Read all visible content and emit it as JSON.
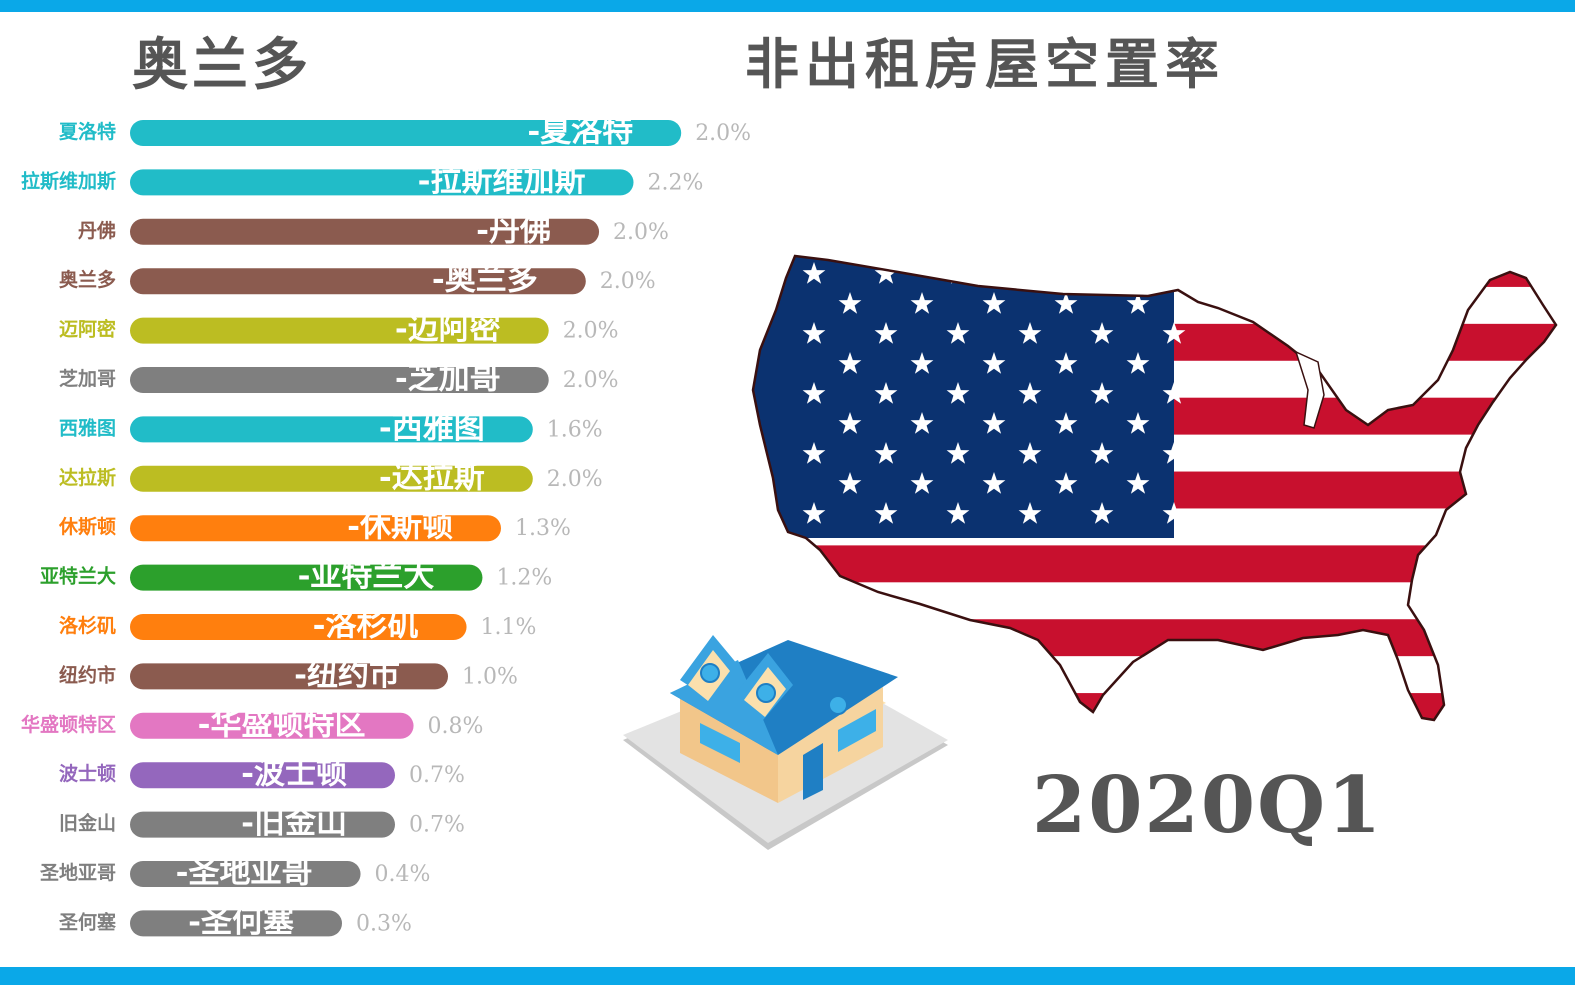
{
  "header": {
    "leader": "奥兰多",
    "title": "非出租房屋空置率"
  },
  "period": "2020Q1",
  "illustrations": {
    "map": "us-flag-map-icon",
    "house": "house-icon"
  },
  "colors": {
    "frame": "#0aa8e8",
    "value_label": "#b8b8b8"
  },
  "chart_data": {
    "type": "bar",
    "orientation": "horizontal",
    "title": "非出租房屋空置率",
    "categories": [
      "夏洛特",
      "拉斯维加斯",
      "丹佛",
      "奥兰多",
      "迈阿密",
      "芝加哥",
      "西雅图",
      "达拉斯",
      "休斯顿",
      "亚特兰大",
      "洛杉矶",
      "纽约市",
      "华盛顿特区",
      "波士顿",
      "旧金山",
      "圣地亚哥",
      "圣何塞"
    ],
    "bar_labels": [
      "-夏洛特",
      "-拉斯维加斯",
      "-丹佛",
      "-奥兰多",
      "-迈阿密",
      "-芝加哥",
      "-西雅图",
      "-达拉斯",
      "-休斯顿",
      "-亚特兰大",
      "-洛杉矶",
      "-纽约市",
      "-华盛顿特区",
      "-波士顿",
      "-旧金山",
      "-圣地亚哥",
      "-圣何塞"
    ],
    "value_labels": [
      "2.0%",
      "2.2%",
      "2.0%",
      "2.0%",
      "2.0%",
      "2.0%",
      "1.6%",
      "2.0%",
      "1.3%",
      "1.2%",
      "1.1%",
      "1.0%",
      "0.8%",
      "0.7%",
      "0.7%",
      "0.4%",
      "0.3%"
    ],
    "values": [
      2.0,
      2.2,
      2.0,
      2.0,
      2.0,
      2.0,
      1.6,
      2.0,
      1.3,
      1.2,
      1.1,
      1.0,
      0.8,
      0.7,
      0.7,
      0.4,
      0.3
    ],
    "bar_extent_index": [
      2.08,
      1.9,
      1.77,
      1.72,
      1.58,
      1.58,
      1.52,
      1.52,
      1.4,
      1.33,
      1.27,
      1.2,
      1.07,
      1.0,
      1.0,
      0.87,
      0.8
    ],
    "colors": [
      "#21bcc8",
      "#21bcc8",
      "#8b5b4f",
      "#8b5b4f",
      "#bcbd22",
      "#7f7f7f",
      "#21bcc8",
      "#bcbd22",
      "#ff7f0e",
      "#2ca02c",
      "#ff7f0e",
      "#8b5b4f",
      "#e377c2",
      "#9467bd",
      "#7f7f7f",
      "#7f7f7f",
      "#7f7f7f"
    ],
    "grid": false,
    "legend": "none"
  }
}
